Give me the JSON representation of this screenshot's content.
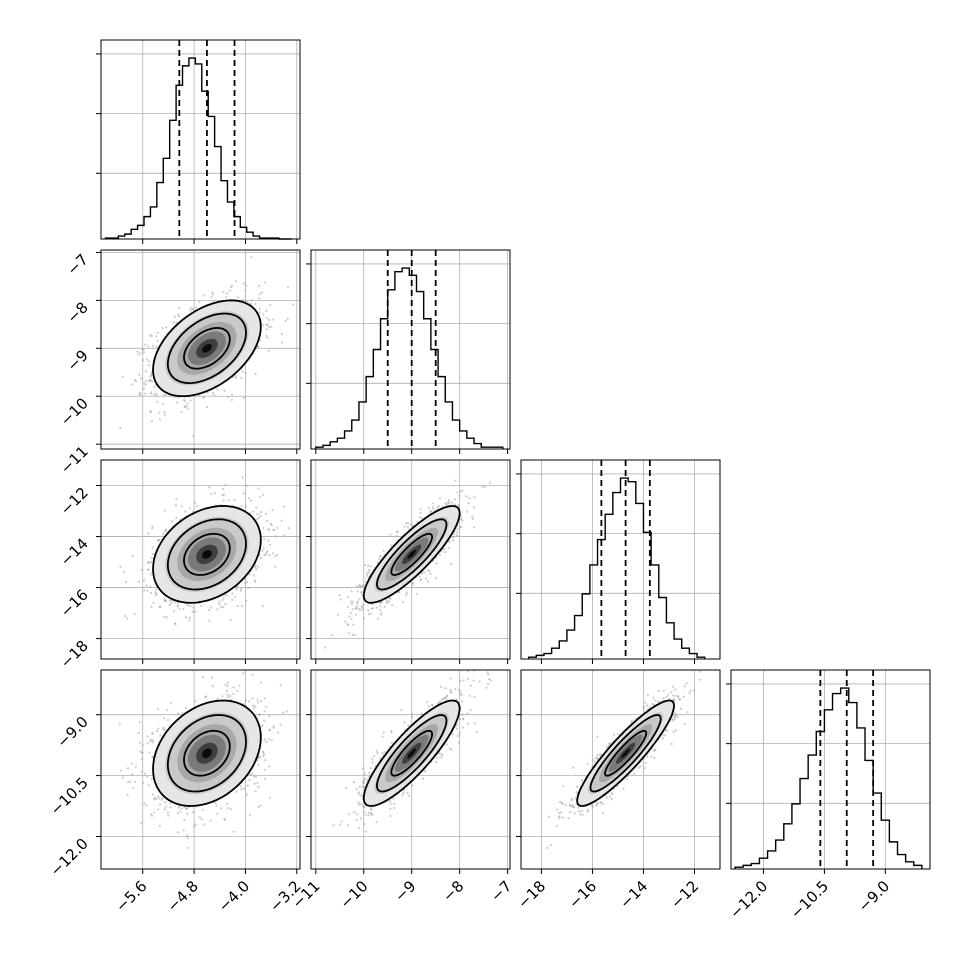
{
  "chart_data": {
    "type": "corner",
    "grid": true,
    "parameters": [
      {
        "range": [
          -6.25,
          -3.15
        ],
        "ticks": [
          -5.6,
          -4.8,
          -4.0,
          -3.2
        ],
        "tick_labels": [
          "−5.6",
          "−4.8",
          "−4.0",
          "−3.2"
        ],
        "mean": -4.6,
        "sd": 0.42
      },
      {
        "range": [
          -11.1,
          -6.95
        ],
        "ticks": [
          -11,
          -10,
          -9,
          -8,
          -7
        ],
        "tick_labels": [
          "−11",
          "−10",
          "−9",
          "−8",
          "−7"
        ],
        "mean": -9.0,
        "sd": 0.5
      },
      {
        "range": [
          -18.8,
          -11.0
        ],
        "ticks": [
          -18,
          -16,
          -14,
          -12
        ],
        "tick_labels": [
          "−18",
          "−16",
          "−14",
          "−12"
        ],
        "mean": -14.7,
        "sd": 0.95
      },
      {
        "range": [
          -12.8,
          -7.9
        ],
        "ticks": [
          -12.0,
          -10.5,
          -9.0
        ],
        "tick_labels": [
          "−12.0",
          "−10.5",
          "−9.0"
        ],
        "mean": -9.95,
        "sd": 0.65
      }
    ],
    "correlations": [
      [
        1,
        0.45,
        0.3,
        0.3
      ],
      [
        0.45,
        1,
        0.85,
        0.85
      ],
      [
        0.3,
        0.85,
        1,
        0.9
      ],
      [
        0.3,
        0.85,
        0.9,
        1
      ]
    ],
    "histograms": [
      {
        "quantiles": [
          -5.03,
          -4.6,
          -4.17
        ],
        "bins": [
          -6.18,
          -6.08,
          -5.98,
          -5.88,
          -5.78,
          -5.68,
          -5.58,
          -5.48,
          -5.38,
          -5.28,
          -5.18,
          -5.08,
          -4.98,
          -4.88,
          -4.78,
          -4.68,
          -4.58,
          -4.48,
          -4.38,
          -4.28,
          -4.18,
          -4.08,
          -3.98,
          -3.88,
          -3.78,
          -3.68,
          -3.58,
          -3.48,
          -3.38,
          -3.28
        ],
        "counts": [
          1,
          1,
          3,
          5,
          10,
          14,
          23,
          33,
          58,
          83,
          122,
          158,
          178,
          186,
          180,
          152,
          126,
          95,
          60,
          38,
          23,
          12,
          7,
          3,
          1,
          1,
          1,
          0,
          0
        ]
      },
      {
        "quantiles": [
          -9.5,
          -9.0,
          -8.5
        ],
        "bins": [
          -11.0,
          -10.85,
          -10.7,
          -10.55,
          -10.4,
          -10.25,
          -10.1,
          -9.95,
          -9.8,
          -9.65,
          -9.5,
          -9.35,
          -9.2,
          -9.05,
          -8.9,
          -8.75,
          -8.6,
          -8.45,
          -8.3,
          -8.15,
          -8.0,
          -7.85,
          -7.7,
          -7.55,
          -7.4,
          -7.25,
          -7.1
        ],
        "counts": [
          1,
          2,
          4,
          6,
          10,
          16,
          26,
          40,
          55,
          72,
          88,
          98,
          100,
          96,
          87,
          72,
          55,
          40,
          26,
          16,
          10,
          6,
          3,
          1,
          1,
          1
        ]
      },
      {
        "quantiles": [
          -15.65,
          -14.7,
          -13.75
        ],
        "bins": [
          -18.5,
          -18.2,
          -17.9,
          -17.6,
          -17.3,
          -17.0,
          -16.7,
          -16.4,
          -16.1,
          -15.8,
          -15.5,
          -15.2,
          -14.9,
          -14.6,
          -14.3,
          -14.0,
          -13.7,
          -13.4,
          -13.1,
          -12.8,
          -12.5,
          -12.2,
          -11.9,
          -11.6
        ],
        "counts": [
          1,
          2,
          3,
          6,
          10,
          16,
          24,
          36,
          52,
          66,
          80,
          92,
          100,
          98,
          86,
          70,
          52,
          34,
          20,
          11,
          6,
          3,
          1
        ]
      },
      {
        "quantiles": [
          -10.6,
          -9.95,
          -9.3
        ],
        "bins": [
          -12.7,
          -12.5,
          -12.3,
          -12.1,
          -11.9,
          -11.7,
          -11.5,
          -11.3,
          -11.1,
          -10.9,
          -10.7,
          -10.5,
          -10.3,
          -10.1,
          -9.9,
          -9.7,
          -9.5,
          -9.3,
          -9.1,
          -8.9,
          -8.7,
          -8.5,
          -8.3,
          -8.1
        ],
        "counts": [
          1,
          2,
          3,
          6,
          10,
          16,
          25,
          36,
          50,
          63,
          76,
          88,
          97,
          100,
          92,
          78,
          60,
          42,
          27,
          15,
          8,
          4,
          2
        ]
      }
    ]
  }
}
